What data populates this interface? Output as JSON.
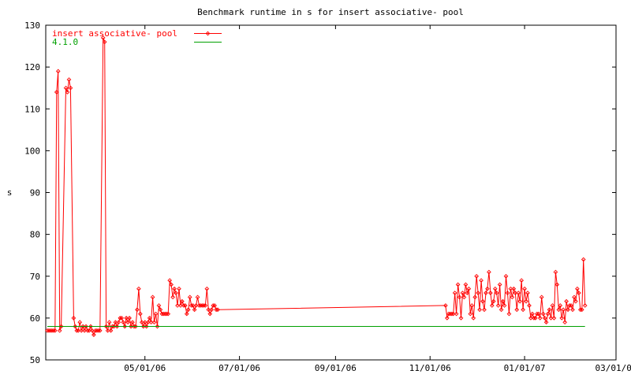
{
  "chart_data": {
    "type": "line",
    "title": "Benchmark runtime in s for insert associative-  pool",
    "xlabel": "",
    "ylabel": "s",
    "ylim": [
      50,
      130
    ],
    "y_ticks": [
      "50",
      "60",
      "70",
      "80",
      "90",
      "100",
      "110",
      "120",
      "130"
    ],
    "x_ticks": [
      "05/01/06",
      "07/01/06",
      "09/01/06",
      "11/01/06",
      "01/01/07",
      "03/01/07"
    ],
    "xlim": [
      "2006-02-26",
      "2007-03-01"
    ],
    "legend_position": "top-left",
    "grid": false,
    "colors": {
      "series1": "#ff0000",
      "series2": "#00a000",
      "text": "#000000"
    },
    "series": [
      {
        "name": "insert associative-  pool",
        "color": "#ff0000",
        "marker": "diamond",
        "points": [
          [
            "2006-02-27",
            57
          ],
          [
            "2006-02-28",
            57
          ],
          [
            "2006-03-01",
            57
          ],
          [
            "2006-03-02",
            57
          ],
          [
            "2006-03-03",
            57
          ],
          [
            "2006-03-04",
            57
          ],
          [
            "2006-03-05",
            114
          ],
          [
            "2006-03-06",
            119
          ],
          [
            "2006-03-07",
            57
          ],
          [
            "2006-03-08",
            58
          ],
          [
            "2006-03-11",
            115
          ],
          [
            "2006-03-12",
            114
          ],
          [
            "2006-03-13",
            117
          ],
          [
            "2006-03-14",
            115
          ],
          [
            "2006-03-16",
            60
          ],
          [
            "2006-03-17",
            58
          ],
          [
            "2006-03-18",
            57
          ],
          [
            "2006-03-19",
            57
          ],
          [
            "2006-03-20",
            59
          ],
          [
            "2006-03-21",
            57
          ],
          [
            "2006-03-22",
            58
          ],
          [
            "2006-03-23",
            57
          ],
          [
            "2006-03-24",
            58
          ],
          [
            "2006-03-25",
            57
          ],
          [
            "2006-03-26",
            57
          ],
          [
            "2006-03-27",
            58
          ],
          [
            "2006-03-28",
            57
          ],
          [
            "2006-03-29",
            56
          ],
          [
            "2006-03-30",
            57
          ],
          [
            "2006-03-31",
            57
          ],
          [
            "2006-04-01",
            57
          ],
          [
            "2006-04-02",
            57
          ],
          [
            "2006-04-04",
            127
          ],
          [
            "2006-04-05",
            126
          ],
          [
            "2006-04-06",
            58
          ],
          [
            "2006-04-07",
            57
          ],
          [
            "2006-04-08",
            59
          ],
          [
            "2006-04-09",
            57
          ],
          [
            "2006-04-10",
            58
          ],
          [
            "2006-04-11",
            58
          ],
          [
            "2006-04-12",
            59
          ],
          [
            "2006-04-13",
            58
          ],
          [
            "2006-04-14",
            59
          ],
          [
            "2006-04-15",
            60
          ],
          [
            "2006-04-16",
            60
          ],
          [
            "2006-04-17",
            59
          ],
          [
            "2006-04-18",
            58
          ],
          [
            "2006-04-19",
            60
          ],
          [
            "2006-04-20",
            59
          ],
          [
            "2006-04-21",
            60
          ],
          [
            "2006-04-22",
            58
          ],
          [
            "2006-04-23",
            59
          ],
          [
            "2006-04-24",
            58
          ],
          [
            "2006-04-25",
            58
          ],
          [
            "2006-04-26",
            62
          ],
          [
            "2006-04-27",
            67
          ],
          [
            "2006-04-28",
            61
          ],
          [
            "2006-04-29",
            59
          ],
          [
            "2006-04-30",
            58
          ],
          [
            "2006-05-01",
            59
          ],
          [
            "2006-05-02",
            58
          ],
          [
            "2006-05-03",
            59
          ],
          [
            "2006-05-04",
            60
          ],
          [
            "2006-05-05",
            59
          ],
          [
            "2006-05-06",
            65
          ],
          [
            "2006-05-07",
            59
          ],
          [
            "2006-05-08",
            61
          ],
          [
            "2006-05-09",
            58
          ],
          [
            "2006-05-10",
            63
          ],
          [
            "2006-05-11",
            62
          ],
          [
            "2006-05-12",
            61
          ],
          [
            "2006-05-13",
            61
          ],
          [
            "2006-05-14",
            61
          ],
          [
            "2006-05-15",
            61
          ],
          [
            "2006-05-16",
            61
          ],
          [
            "2006-05-17",
            69
          ],
          [
            "2006-05-18",
            68
          ],
          [
            "2006-05-19",
            65
          ],
          [
            "2006-05-20",
            67
          ],
          [
            "2006-05-21",
            66
          ],
          [
            "2006-05-22",
            63
          ],
          [
            "2006-05-23",
            67
          ],
          [
            "2006-05-24",
            63
          ],
          [
            "2006-05-25",
            64
          ],
          [
            "2006-05-26",
            63
          ],
          [
            "2006-05-27",
            63
          ],
          [
            "2006-05-28",
            61
          ],
          [
            "2006-05-29",
            62
          ],
          [
            "2006-05-30",
            65
          ],
          [
            "2006-05-31",
            63
          ],
          [
            "2006-06-01",
            63
          ],
          [
            "2006-06-02",
            62
          ],
          [
            "2006-06-03",
            63
          ],
          [
            "2006-06-04",
            65
          ],
          [
            "2006-06-05",
            63
          ],
          [
            "2006-06-06",
            63
          ],
          [
            "2006-06-07",
            63
          ],
          [
            "2006-06-08",
            63
          ],
          [
            "2006-06-09",
            63
          ],
          [
            "2006-06-10",
            67
          ],
          [
            "2006-06-11",
            62
          ],
          [
            "2006-06-12",
            61
          ],
          [
            "2006-06-13",
            62
          ],
          [
            "2006-06-14",
            63
          ],
          [
            "2006-06-15",
            63
          ],
          [
            "2006-06-16",
            62
          ],
          [
            "2006-06-17",
            62
          ],
          [
            "2006-11-11",
            63
          ],
          [
            "2006-11-12",
            60
          ],
          [
            "2006-11-13",
            61
          ],
          [
            "2006-11-14",
            61
          ],
          [
            "2006-11-15",
            61
          ],
          [
            "2006-11-16",
            61
          ],
          [
            "2006-11-17",
            66
          ],
          [
            "2006-11-18",
            61
          ],
          [
            "2006-11-19",
            68
          ],
          [
            "2006-11-20",
            65
          ],
          [
            "2006-11-21",
            60
          ],
          [
            "2006-11-22",
            66
          ],
          [
            "2006-11-23",
            65
          ],
          [
            "2006-11-24",
            68
          ],
          [
            "2006-11-25",
            66
          ],
          [
            "2006-11-26",
            67
          ],
          [
            "2006-11-27",
            61
          ],
          [
            "2006-11-28",
            63
          ],
          [
            "2006-11-29",
            60
          ],
          [
            "2006-11-30",
            65
          ],
          [
            "2006-12-01",
            70
          ],
          [
            "2006-12-02",
            66
          ],
          [
            "2006-12-03",
            62
          ],
          [
            "2006-12-04",
            69
          ],
          [
            "2006-12-05",
            64
          ],
          [
            "2006-12-06",
            62
          ],
          [
            "2006-12-07",
            66
          ],
          [
            "2006-12-08",
            67
          ],
          [
            "2006-12-09",
            71
          ],
          [
            "2006-12-10",
            66
          ],
          [
            "2006-12-11",
            63
          ],
          [
            "2006-12-12",
            64
          ],
          [
            "2006-12-13",
            67
          ],
          [
            "2006-12-14",
            66
          ],
          [
            "2006-12-15",
            63
          ],
          [
            "2006-12-16",
            68
          ],
          [
            "2006-12-17",
            62
          ],
          [
            "2006-12-18",
            64
          ],
          [
            "2006-12-19",
            63
          ],
          [
            "2006-12-20",
            70
          ],
          [
            "2006-12-21",
            66
          ],
          [
            "2006-12-22",
            61
          ],
          [
            "2006-12-23",
            67
          ],
          [
            "2006-12-24",
            65
          ],
          [
            "2006-12-25",
            67
          ],
          [
            "2006-12-26",
            66
          ],
          [
            "2006-12-27",
            62
          ],
          [
            "2006-12-28",
            66
          ],
          [
            "2006-12-29",
            64
          ],
          [
            "2006-12-30",
            69
          ],
          [
            "2006-12-31",
            62
          ],
          [
            "2007-01-01",
            67
          ],
          [
            "2007-01-02",
            64
          ],
          [
            "2007-01-03",
            66
          ],
          [
            "2007-01-04",
            63
          ],
          [
            "2007-01-05",
            60
          ],
          [
            "2007-01-06",
            61
          ],
          [
            "2007-01-07",
            60
          ],
          [
            "2007-01-08",
            60
          ],
          [
            "2007-01-09",
            61
          ],
          [
            "2007-01-10",
            61
          ],
          [
            "2007-01-11",
            60
          ],
          [
            "2007-01-12",
            65
          ],
          [
            "2007-01-13",
            61
          ],
          [
            "2007-01-14",
            60
          ],
          [
            "2007-01-15",
            59
          ],
          [
            "2007-01-16",
            61
          ],
          [
            "2007-01-17",
            62
          ],
          [
            "2007-01-18",
            60
          ],
          [
            "2007-01-19",
            63
          ],
          [
            "2007-01-20",
            60
          ],
          [
            "2007-01-21",
            71
          ],
          [
            "2007-01-22",
            68
          ],
          [
            "2007-01-23",
            62
          ],
          [
            "2007-01-24",
            63
          ],
          [
            "2007-01-25",
            60
          ],
          [
            "2007-01-26",
            62
          ],
          [
            "2007-01-27",
            59
          ],
          [
            "2007-01-28",
            64
          ],
          [
            "2007-01-29",
            62
          ],
          [
            "2007-01-30",
            63
          ],
          [
            "2007-01-31",
            63
          ],
          [
            "2007-02-01",
            62
          ],
          [
            "2007-02-02",
            65
          ],
          [
            "2007-02-03",
            64
          ],
          [
            "2007-02-04",
            67
          ],
          [
            "2007-02-05",
            66
          ],
          [
            "2007-02-06",
            62
          ],
          [
            "2007-02-07",
            62
          ],
          [
            "2007-02-08",
            74
          ],
          [
            "2007-02-09",
            63
          ]
        ]
      },
      {
        "name": "4.1.0",
        "color": "#00a000",
        "marker": "none",
        "points": [
          [
            "2006-02-27",
            58
          ],
          [
            "2007-02-09",
            58
          ]
        ]
      }
    ]
  }
}
